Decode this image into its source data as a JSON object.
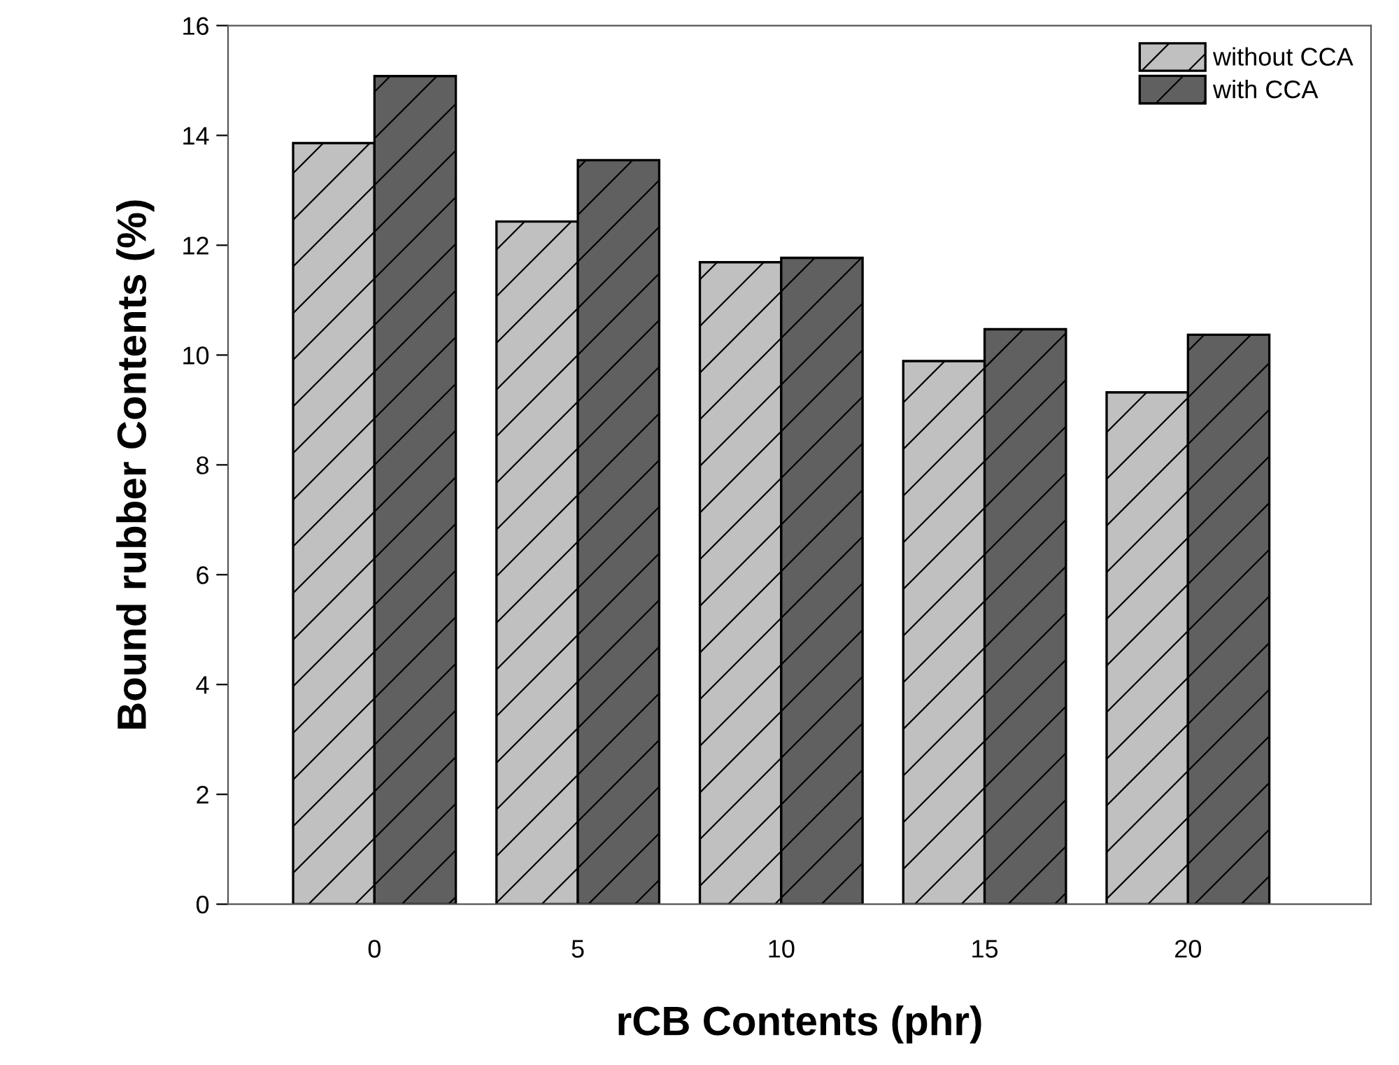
{
  "chart_data": {
    "type": "bar",
    "xlabel": "rCB Contents (phr)",
    "ylabel": "Bound rubber Contents (%)",
    "categories": [
      "0",
      "5",
      "10",
      "15",
      "20"
    ],
    "series": [
      {
        "name": "without CCA",
        "color": "#c0c0c0",
        "values": [
          13.86,
          12.43,
          11.69,
          9.89,
          9.32
        ]
      },
      {
        "name": "with CCA",
        "color": "#606060",
        "values": [
          15.08,
          13.55,
          11.77,
          10.47,
          10.37
        ]
      }
    ],
    "ylim": [
      0,
      16
    ],
    "yticks": [
      0,
      2,
      4,
      6,
      8,
      10,
      12,
      14,
      16
    ],
    "grid": false,
    "legend": "top right"
  }
}
